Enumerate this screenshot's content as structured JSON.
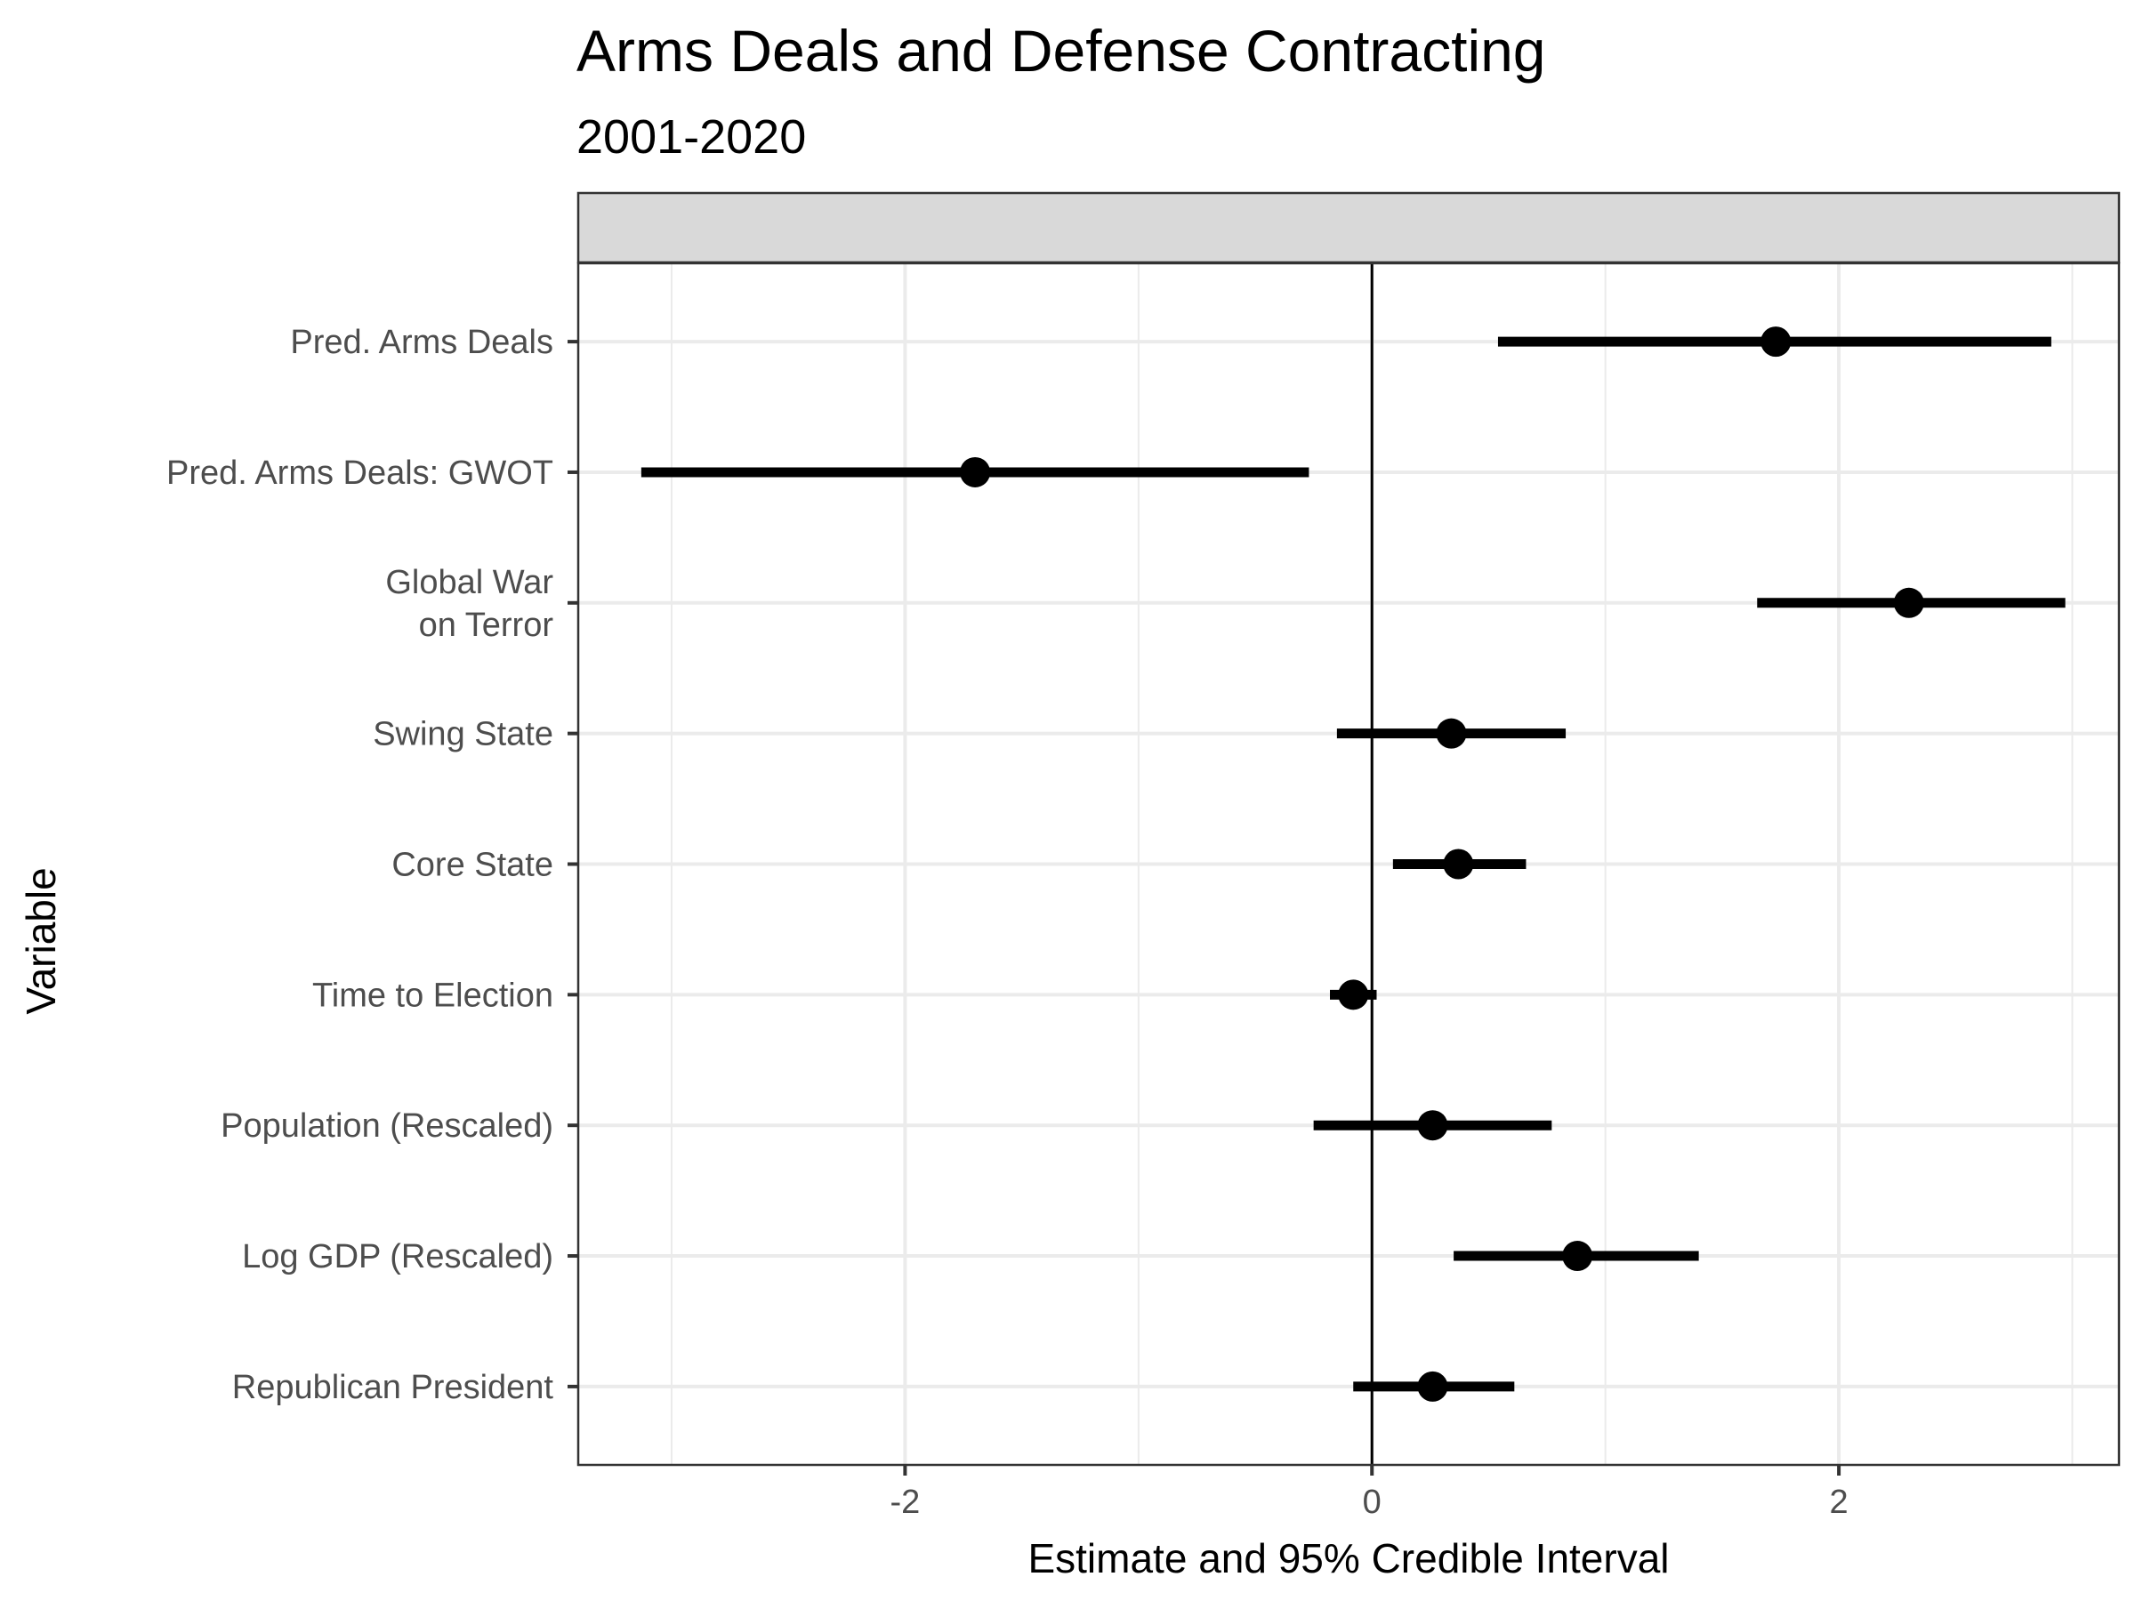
{
  "chart_data": {
    "type": "scatter",
    "title": "Arms Deals and Defense Contracting",
    "subtitle": "2001-2020",
    "xlabel": "Estimate and 95% Credible Interval",
    "ylabel": "Variable",
    "xlim": [
      -3.4,
      3.2
    ],
    "xticks": [
      -2,
      0,
      2
    ],
    "xtick_labels": [
      "-2",
      "0",
      "2"
    ],
    "grid": true,
    "reference_line_x": 0,
    "facet_strip_label": "",
    "categories": [
      "Pred. Arms Deals",
      "Pred. Arms Deals: GWOT",
      "Global War on Terror",
      "Swing State",
      "Core State",
      "Time to Election",
      "Population (Rescaled)",
      "Log GDP (Rescaled)",
      "Republican President"
    ],
    "category_label_lines": [
      [
        "Pred. Arms Deals"
      ],
      [
        "Pred. Arms Deals: GWOT"
      ],
      [
        "Global War",
        "on Terror"
      ],
      [
        "Swing State"
      ],
      [
        "Core State"
      ],
      [
        "Time to Election"
      ],
      [
        "Population (Rescaled)"
      ],
      [
        "Log GDP (Rescaled)"
      ],
      [
        "Republican President"
      ]
    ],
    "series": [
      {
        "estimate": [
          1.73,
          -1.7,
          2.3,
          0.34,
          0.37,
          -0.08,
          0.26,
          0.88,
          0.26
        ],
        "lower": [
          0.54,
          -3.13,
          1.65,
          -0.15,
          0.09,
          -0.18,
          -0.25,
          0.35,
          -0.08
        ],
        "upper": [
          2.91,
          -0.27,
          2.97,
          0.83,
          0.66,
          0.02,
          0.77,
          1.4,
          0.61
        ]
      }
    ],
    "colors": {
      "point": "#000000",
      "interval": "#000000",
      "grid": "#ebebeb",
      "strip_fill": "#d9d9d9",
      "panel_border": "#333333",
      "tick_text": "#4d4d4d"
    }
  }
}
